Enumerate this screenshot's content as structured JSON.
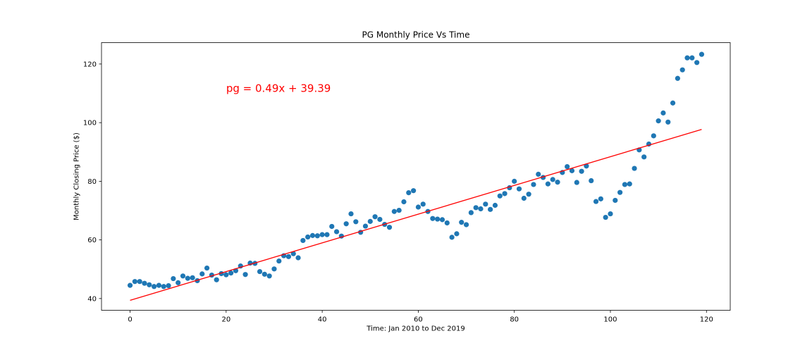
{
  "chart_data": {
    "type": "scatter",
    "title": "PG Monthly Price Vs Time",
    "xlabel": "Time: Jan 2010 to Dec 2019",
    "ylabel": "Monthly Closing Price ($)",
    "xlim": [
      -5.95,
      124.95
    ],
    "ylim": [
      36.0,
      127.3
    ],
    "xticks": [
      0,
      20,
      40,
      60,
      80,
      100,
      120
    ],
    "yticks": [
      40,
      60,
      80,
      100,
      120
    ],
    "grid": false,
    "marker_color": "#1f77b4",
    "line_color": "#ff0000",
    "x": [
      0,
      1,
      2,
      3,
      4,
      5,
      6,
      7,
      8,
      9,
      10,
      11,
      12,
      13,
      14,
      15,
      16,
      17,
      18,
      19,
      20,
      21,
      22,
      23,
      24,
      25,
      26,
      27,
      28,
      29,
      30,
      31,
      32,
      33,
      34,
      35,
      36,
      37,
      38,
      39,
      40,
      41,
      42,
      43,
      44,
      45,
      46,
      47,
      48,
      49,
      50,
      51,
      52,
      53,
      54,
      55,
      56,
      57,
      58,
      59,
      60,
      61,
      62,
      63,
      64,
      65,
      66,
      67,
      68,
      69,
      70,
      71,
      72,
      73,
      74,
      75,
      76,
      77,
      78,
      79,
      80,
      81,
      82,
      83,
      84,
      85,
      86,
      87,
      88,
      89,
      90,
      91,
      92,
      93,
      94,
      95,
      96,
      97,
      98,
      99,
      100,
      101,
      102,
      103,
      104,
      105,
      106,
      107,
      108,
      109,
      110,
      111,
      112,
      113,
      114,
      115,
      116,
      117,
      118,
      119
    ],
    "y": [
      44.5,
      45.8,
      45.8,
      45.2,
      44.7,
      44.1,
      44.5,
      44.1,
      44.4,
      46.8,
      45.4,
      47.7,
      46.9,
      47.1,
      46.1,
      48.4,
      50.4,
      48.0,
      46.4,
      48.5,
      48.1,
      48.7,
      49.5,
      51.1,
      48.2,
      52.1,
      52.0,
      49.2,
      48.3,
      47.7,
      50.1,
      52.8,
      54.6,
      54.3,
      55.3,
      53.9,
      59.8,
      61.0,
      61.5,
      61.4,
      61.8,
      61.8,
      64.6,
      62.8,
      61.3,
      65.5,
      68.9,
      66.2,
      62.6,
      64.7,
      66.3,
      67.9,
      67.0,
      65.3,
      64.3,
      69.7,
      70.1,
      73.0,
      76.1,
      76.8,
      71.2,
      72.2,
      69.7,
      67.3,
      67.1,
      66.9,
      65.8,
      60.9,
      62.1,
      66.0,
      65.2,
      69.3,
      71.0,
      70.6,
      72.2,
      70.4,
      71.8,
      75.0,
      75.8,
      77.8,
      80.0,
      77.4,
      74.2,
      75.6,
      78.9,
      82.4,
      81.3,
      79.1,
      80.6,
      79.7,
      83.0,
      85.0,
      83.6,
      79.6,
      83.4,
      85.2,
      80.2,
      73.1,
      74.0,
      67.7,
      68.9,
      73.5,
      76.2,
      78.9,
      79.1,
      84.4,
      90.7,
      88.3,
      92.7,
      95.5,
      100.6,
      103.3,
      100.2,
      106.7,
      115.1,
      118.0,
      122.1,
      122.1,
      120.5,
      123.3
    ],
    "fit": {
      "label": "pg = 0.49x + 39.39",
      "slope": 0.49,
      "intercept": 39.39,
      "x_range": [
        0,
        119
      ],
      "label_anchor": [
        20,
        110.5
      ]
    }
  }
}
